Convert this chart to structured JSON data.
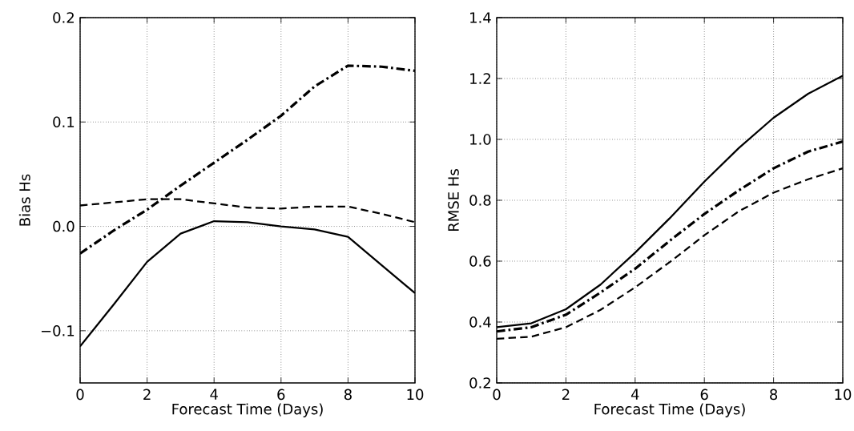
{
  "chart_data": [
    {
      "type": "line",
      "xlabel": "Forecast Time (Days)",
      "ylabel": "Bias Hs",
      "x": [
        0,
        1,
        2,
        3,
        4,
        5,
        6,
        7,
        8,
        9,
        10
      ],
      "xlim": [
        0,
        10
      ],
      "xticks": [
        0,
        2,
        4,
        6,
        8,
        10
      ],
      "ylim": [
        -0.15,
        0.2
      ],
      "yticks": [
        {
          "value": -0.1,
          "label": "−0.1"
        },
        {
          "value": 0,
          "label": "0.0"
        },
        0.1,
        0.2
      ],
      "grid": true,
      "series": [
        {
          "color": "#000000",
          "line_style": "solid",
          "values": [
            -0.115,
            -0.075,
            -0.034,
            -0.007,
            0.005,
            0.004,
            0.0,
            -0.003,
            -0.01,
            -0.037,
            -0.064
          ]
        },
        {
          "color": "#000000",
          "line_style": "dashed",
          "values": [
            0.02,
            0.023,
            0.026,
            0.026,
            0.022,
            0.018,
            0.017,
            0.019,
            0.019,
            0.012,
            0.004
          ]
        },
        {
          "color": "#000000",
          "line_style": "dashdot",
          "values": [
            -0.026,
            -0.004,
            0.016,
            0.039,
            0.061,
            0.083,
            0.106,
            0.134,
            0.154,
            0.153,
            0.149
          ]
        }
      ]
    },
    {
      "type": "line",
      "xlabel": "Forecast Time (Days)",
      "ylabel": "RMSE Hs",
      "x": [
        0,
        1,
        2,
        3,
        4,
        5,
        6,
        7,
        8,
        9,
        10
      ],
      "xlim": [
        0,
        10
      ],
      "xticks": [
        0,
        2,
        4,
        6,
        8,
        10
      ],
      "ylim": [
        0.2,
        1.4
      ],
      "yticks": [
        0.2,
        0.4,
        0.6,
        0.8,
        {
          "value": 1,
          "label": "1.0"
        },
        1.2,
        1.4
      ],
      "grid": true,
      "series": [
        {
          "color": "#000000",
          "line_style": "solid",
          "values": [
            0.383,
            0.396,
            0.442,
            0.523,
            0.628,
            0.741,
            0.861,
            0.972,
            1.071,
            1.15,
            1.209
          ]
        },
        {
          "color": "#000000",
          "line_style": "dashdot",
          "values": [
            0.369,
            0.383,
            0.424,
            0.497,
            0.575,
            0.667,
            0.755,
            0.833,
            0.905,
            0.96,
            0.993
          ]
        },
        {
          "color": "#000000",
          "line_style": "dashed",
          "values": [
            0.345,
            0.352,
            0.383,
            0.44,
            0.514,
            0.597,
            0.685,
            0.764,
            0.825,
            0.869,
            0.905
          ]
        }
      ]
    }
  ]
}
